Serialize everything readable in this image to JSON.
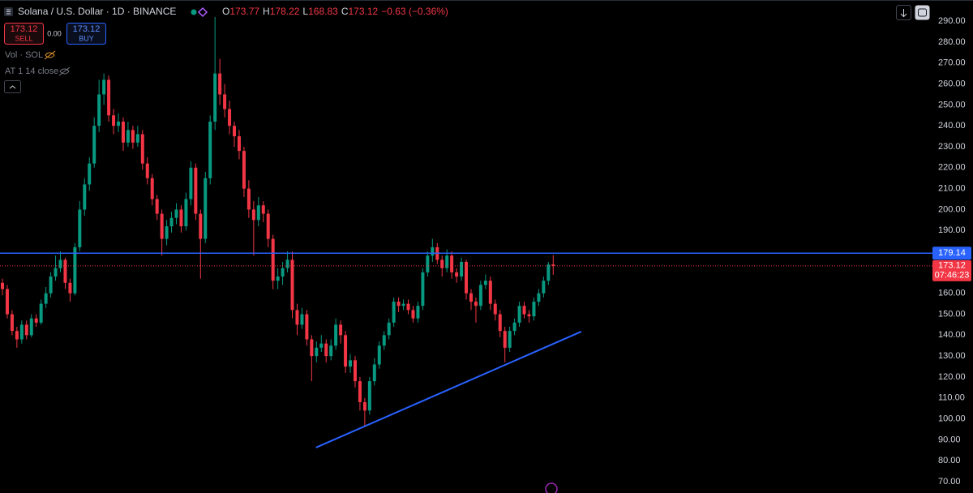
{
  "header": {
    "symbol": "Solana / U.S. Dollar · 1D · BINANCE",
    "o_label": "O",
    "h_label": "H",
    "l_label": "L",
    "c_label": "C",
    "change": "−0.63 (−0.36%)",
    "sell": "SELL",
    "buy": "BUY",
    "spread": "0.00",
    "volume": "Vol · SOL",
    "indicator": "AT 1 14 close"
  },
  "chart_data": {
    "type": "candlestick",
    "up_color": "#089981",
    "down_color": "#f23645",
    "xlim": [
      0,
      193
    ],
    "ylim": [
      64.6,
      300.1
    ],
    "yticks": [
      {
        "value": 70,
        "label": "70.00"
      },
      {
        "value": 80,
        "label": "80.00"
      },
      {
        "value": 90,
        "label": "90.00"
      },
      {
        "value": 100,
        "label": "100.00"
      },
      {
        "value": 110,
        "label": "110.00"
      },
      {
        "value": 120,
        "label": "120.00"
      },
      {
        "value": 130,
        "label": "130.00"
      },
      {
        "value": 140,
        "label": "140.00"
      },
      {
        "value": 150,
        "label": "150.00"
      },
      {
        "value": 160,
        "label": "160.00"
      },
      {
        "value": 170,
        "label": "170.00"
      },
      {
        "value": 180,
        "label": "180.00"
      },
      {
        "value": 190,
        "label": "190.00"
      },
      {
        "value": 200,
        "label": "200.00"
      },
      {
        "value": 210,
        "label": "210.00"
      },
      {
        "value": 220,
        "label": "220.00"
      },
      {
        "value": 230,
        "label": "230.00"
      },
      {
        "value": 240,
        "label": "240.00"
      },
      {
        "value": 250,
        "label": "250.00"
      },
      {
        "value": 260,
        "label": "260.00"
      },
      {
        "value": 270,
        "label": "270.00"
      },
      {
        "value": 280,
        "label": "280.00"
      },
      {
        "value": 290,
        "label": "290.00"
      }
    ],
    "grid": false,
    "price_line": {
      "value": 179.14,
      "color": "#2962ff"
    },
    "countdown": "07:46:23",
    "trendline": {
      "x": [
        64.9,
        119.8
      ],
      "y": [
        86.3,
        141.7
      ],
      "color": "#2962ff"
    },
    "ohlc": [
      [
        165,
        167,
        159,
        162
      ],
      [
        162,
        164,
        148,
        150
      ],
      [
        150,
        152,
        140,
        142
      ],
      [
        142,
        144,
        134,
        138
      ],
      [
        138,
        147,
        136,
        145
      ],
      [
        145,
        147,
        138,
        140
      ],
      [
        140,
        150,
        139,
        148
      ],
      [
        148,
        150,
        144,
        146
      ],
      [
        146,
        157,
        145,
        155
      ],
      [
        155,
        163,
        153,
        160
      ],
      [
        160,
        170,
        158,
        168
      ],
      [
        168,
        178,
        166,
        172
      ],
      [
        172,
        180,
        170,
        176
      ],
      [
        176,
        177,
        162,
        165
      ],
      [
        165,
        167,
        156,
        160
      ],
      [
        160,
        184,
        159,
        182
      ],
      [
        182,
        204,
        180,
        200
      ],
      [
        200,
        215,
        197,
        212
      ],
      [
        212,
        225,
        209,
        222
      ],
      [
        222,
        244,
        220,
        240
      ],
      [
        240,
        262,
        237,
        255
      ],
      [
        255,
        265,
        250,
        262
      ],
      [
        262,
        264,
        242,
        245
      ],
      [
        245,
        248,
        236,
        240
      ],
      [
        240,
        246,
        237,
        242
      ],
      [
        242,
        244,
        228,
        232
      ],
      [
        232,
        242,
        230,
        238
      ],
      [
        238,
        240,
        229,
        232
      ],
      [
        232,
        240,
        230,
        236
      ],
      [
        236,
        238,
        219,
        222
      ],
      [
        222,
        225,
        212,
        215
      ],
      [
        215,
        217,
        202,
        205
      ],
      [
        205,
        207,
        195,
        198
      ],
      [
        198,
        200,
        178,
        186
      ],
      [
        186,
        195,
        183,
        192
      ],
      [
        192,
        199,
        189,
        196
      ],
      [
        196,
        203,
        193,
        200
      ],
      [
        200,
        202,
        189,
        192
      ],
      [
        192,
        208,
        190,
        205
      ],
      [
        205,
        223,
        202,
        220
      ],
      [
        220,
        222,
        195,
        198
      ],
      [
        198,
        200,
        167,
        186
      ],
      [
        186,
        218,
        184,
        215
      ],
      [
        215,
        245,
        212,
        242
      ],
      [
        242,
        292,
        238,
        265
      ],
      [
        265,
        272,
        250,
        255
      ],
      [
        255,
        260,
        244,
        248
      ],
      [
        248,
        252,
        236,
        240
      ],
      [
        240,
        242,
        230,
        235
      ],
      [
        235,
        238,
        224,
        228
      ],
      [
        228,
        230,
        206,
        210
      ],
      [
        210,
        214,
        196,
        200
      ],
      [
        200,
        204,
        178,
        195
      ],
      [
        195,
        206,
        192,
        202
      ],
      [
        202,
        204,
        194,
        198
      ],
      [
        198,
        200,
        182,
        186
      ],
      [
        186,
        188,
        162,
        166
      ],
      [
        166,
        172,
        162,
        168
      ],
      [
        168,
        175,
        164,
        172
      ],
      [
        172,
        180,
        170,
        176
      ],
      [
        176,
        180,
        148,
        152
      ],
      [
        152,
        155,
        140,
        145
      ],
      [
        145,
        153,
        143,
        150
      ],
      [
        150,
        152,
        135,
        138
      ],
      [
        138,
        140,
        118,
        130
      ],
      [
        130,
        137,
        127,
        134
      ],
      [
        134,
        140,
        132,
        136
      ],
      [
        136,
        138,
        127,
        130
      ],
      [
        130,
        138,
        128,
        135
      ],
      [
        135,
        148,
        133,
        145
      ],
      [
        145,
        147,
        136,
        140
      ],
      [
        140,
        142,
        122,
        125
      ],
      [
        125,
        131,
        122,
        128
      ],
      [
        128,
        130,
        115,
        118
      ],
      [
        118,
        120,
        104,
        108
      ],
      [
        108,
        110,
        96,
        104
      ],
      [
        104,
        120,
        102,
        118
      ],
      [
        118,
        129,
        116,
        126
      ],
      [
        126,
        137,
        124,
        135
      ],
      [
        135,
        142,
        133,
        140
      ],
      [
        140,
        148,
        138,
        146
      ],
      [
        146,
        158,
        144,
        156
      ],
      [
        156,
        158,
        151,
        154
      ],
      [
        154,
        157,
        152,
        155
      ],
      [
        155,
        157,
        150,
        152
      ],
      [
        152,
        154,
        146,
        148
      ],
      [
        148,
        156,
        146,
        154
      ],
      [
        154,
        172,
        152,
        170
      ],
      [
        170,
        180,
        168,
        178
      ],
      [
        178,
        186,
        175,
        182
      ],
      [
        182,
        184,
        174,
        176
      ],
      [
        176,
        178,
        168,
        172
      ],
      [
        172,
        181,
        170,
        178
      ],
      [
        178,
        180,
        167,
        170
      ],
      [
        170,
        172,
        165,
        168
      ],
      [
        168,
        177,
        166,
        175
      ],
      [
        175,
        176,
        157,
        160
      ],
      [
        160,
        162,
        152,
        156
      ],
      [
        156,
        158,
        146,
        154
      ],
      [
        154,
        166,
        152,
        164
      ],
      [
        164,
        169,
        162,
        166
      ],
      [
        166,
        168,
        152,
        155
      ],
      [
        155,
        157,
        147,
        150
      ],
      [
        150,
        152,
        139,
        142
      ],
      [
        142,
        144,
        127,
        134
      ],
      [
        134,
        144,
        132,
        142
      ],
      [
        142,
        148,
        140,
        146
      ],
      [
        146,
        156,
        144,
        154
      ],
      [
        154,
        156,
        148,
        150
      ],
      [
        150,
        152,
        146,
        149
      ],
      [
        149,
        158,
        147,
        156
      ],
      [
        156,
        162,
        154,
        160
      ],
      [
        160,
        168,
        158,
        166
      ],
      [
        166,
        175,
        164,
        173.75
      ],
      [
        173.77,
        178.22,
        168.83,
        173.12
      ]
    ]
  }
}
